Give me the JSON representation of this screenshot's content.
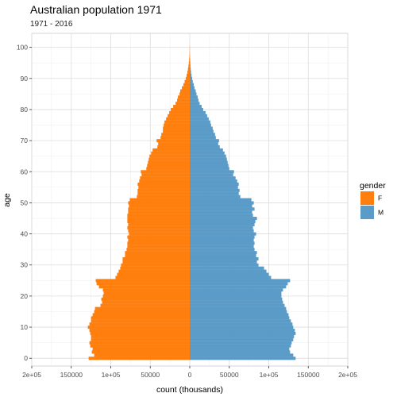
{
  "chart_data": {
    "type": "bar",
    "orientation": "horizontal",
    "layout": "population-pyramid",
    "title": "Australian population 1971",
    "subtitle": "1971 - 2016",
    "xlabel": "count (thousands)",
    "ylabel": "age",
    "xlim": [
      -200000,
      200000
    ],
    "ylim": [
      -2.5,
      104.5
    ],
    "x_ticks": [
      {
        "value": -200000,
        "label": "2e+05"
      },
      {
        "value": -150000,
        "label": "150000"
      },
      {
        "value": -100000,
        "label": "1e+05"
      },
      {
        "value": -50000,
        "label": "50000"
      },
      {
        "value": 0,
        "label": "0"
      },
      {
        "value": 50000,
        "label": "50000"
      },
      {
        "value": 100000,
        "label": "1e+05"
      },
      {
        "value": 150000,
        "label": "150000"
      },
      {
        "value": 200000,
        "label": "2e+05"
      }
    ],
    "y_ticks": [
      0,
      10,
      20,
      30,
      40,
      50,
      60,
      70,
      80,
      90,
      100
    ],
    "grid": true,
    "legend": {
      "title": "gender",
      "placement": "right"
    },
    "series": [
      {
        "name": "F",
        "color": "#ff7f0e",
        "direction": "left",
        "values": [
          128000,
          121000,
          124000,
          123000,
          126000,
          127000,
          125000,
          125000,
          126000,
          127000,
          129000,
          127000,
          125000,
          125000,
          123000,
          121000,
          120000,
          113000,
          111000,
          112000,
          110000,
          109000,
          110000,
          115000,
          118000,
          119000,
          94000,
          92000,
          90000,
          88000,
          87000,
          85000,
          85000,
          82000,
          82000,
          80000,
          79000,
          79000,
          78000,
          79000,
          77000,
          78000,
          79000,
          78000,
          79000,
          79000,
          79000,
          78000,
          78000,
          77000,
          78000,
          76000,
          67000,
          66000,
          66000,
          65000,
          66000,
          64000,
          63000,
          61000,
          62000,
          55000,
          54000,
          53000,
          52000,
          51000,
          49000,
          47000,
          41000,
          40000,
          42000,
          37000,
          36000,
          34000,
          34000,
          33000,
          32000,
          30000,
          28000,
          26000,
          24000,
          21000,
          18000,
          16000,
          15000,
          13000,
          12000,
          10000,
          8000,
          6500,
          5000,
          4000,
          3000,
          2300,
          1700,
          1200,
          800,
          500,
          300,
          200,
          150
        ]
      },
      {
        "name": "M",
        "color": "#5b9bc8",
        "direction": "right",
        "values": [
          134000,
          131000,
          127000,
          126000,
          128000,
          129000,
          131000,
          132000,
          134000,
          133000,
          131000,
          130000,
          128000,
          126000,
          125000,
          123000,
          122000,
          120000,
          118000,
          117000,
          116000,
          116000,
          118000,
          122000,
          124000,
          127000,
          103000,
          100000,
          97000,
          94000,
          87000,
          85000,
          87000,
          84000,
          85000,
          82000,
          81000,
          82000,
          81000,
          82000,
          84000,
          81000,
          80000,
          82000,
          83000,
          85000,
          80000,
          79000,
          82000,
          79000,
          81000,
          78000,
          64000,
          62000,
          63000,
          61000,
          62000,
          60000,
          58000,
          55000,
          56000,
          50000,
          49000,
          48000,
          47000,
          46000,
          44000,
          42000,
          38000,
          36000,
          37000,
          33000,
          32000,
          30000,
          29000,
          27000,
          26000,
          24000,
          22000,
          20000,
          17000,
          15000,
          12500,
          11000,
          10000,
          8500,
          7500,
          6000,
          5000,
          3800,
          3000,
          2200,
          1600,
          1200,
          800,
          600,
          400,
          250,
          150,
          100,
          80
        ]
      }
    ]
  }
}
